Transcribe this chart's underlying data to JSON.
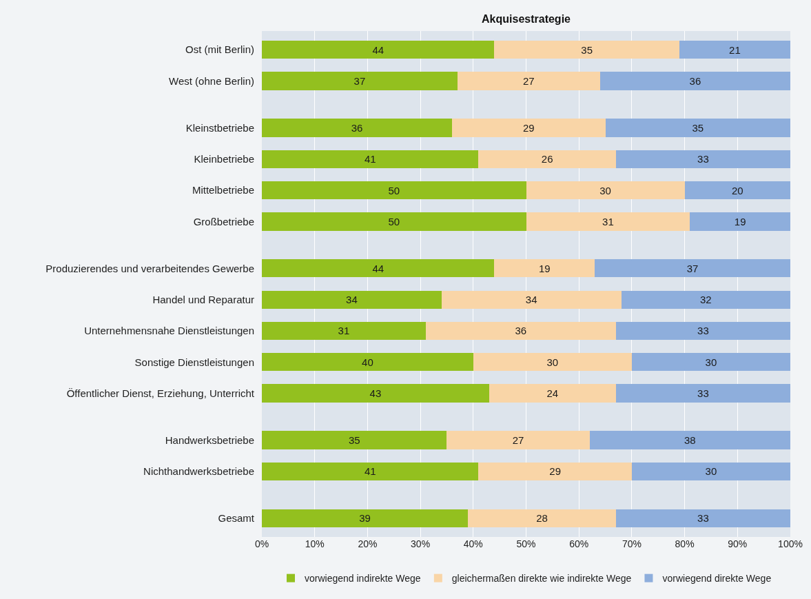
{
  "chart_data": {
    "type": "bar",
    "orientation": "horizontal",
    "stacked": true,
    "title": "Akquisestrategie",
    "categories": [
      "Ost (mit Berlin)",
      "West (ohne Berlin)",
      null,
      "Kleinstbetriebe",
      "Kleinbetriebe",
      "Mittelbetriebe",
      "Großbetriebe",
      null,
      "Produzierendes und verarbeitendes Gewerbe",
      "Handel und Reparatur",
      "Unternehmensnahe Dienstleistungen",
      "Sonstige Dienstleistungen",
      "Öffentlicher Dienst, Erziehung, Unterricht",
      null,
      "Handwerksbetriebe",
      "Nichthandwerksbetriebe",
      null,
      "Gesamt"
    ],
    "series": [
      {
        "name": "vorwiegend indirekte Wege",
        "color": "#93c01f",
        "values": [
          44,
          37,
          null,
          36,
          41,
          50,
          50,
          null,
          44,
          34,
          31,
          40,
          43,
          null,
          35,
          41,
          null,
          39
        ]
      },
      {
        "name": "gleichermaßen direkte wie indirekte Wege",
        "color": "#f9d5a7",
        "values": [
          35,
          27,
          null,
          29,
          26,
          30,
          31,
          null,
          19,
          34,
          36,
          30,
          24,
          null,
          27,
          29,
          null,
          28
        ]
      },
      {
        "name": "vorwiegend direkte Wege",
        "color": "#8eaedc",
        "values": [
          21,
          36,
          null,
          35,
          33,
          20,
          19,
          null,
          37,
          32,
          33,
          30,
          33,
          null,
          38,
          30,
          null,
          33
        ]
      }
    ],
    "xlim": [
      0,
      100
    ],
    "xticks": [
      {
        "value": 0,
        "label": "0%"
      },
      {
        "value": 10,
        "label": "10%"
      },
      {
        "value": 20,
        "label": "20%"
      },
      {
        "value": 30,
        "label": "30%"
      },
      {
        "value": 40,
        "label": "40%"
      },
      {
        "value": 50,
        "label": "50%"
      },
      {
        "value": 60,
        "label": "60%"
      },
      {
        "value": 70,
        "label": "70%"
      },
      {
        "value": 80,
        "label": "80%"
      },
      {
        "value": 90,
        "label": "90%"
      },
      {
        "value": 100,
        "label": "100%"
      }
    ],
    "grid": "x",
    "legend": "bottom",
    "data_labels": true
  }
}
